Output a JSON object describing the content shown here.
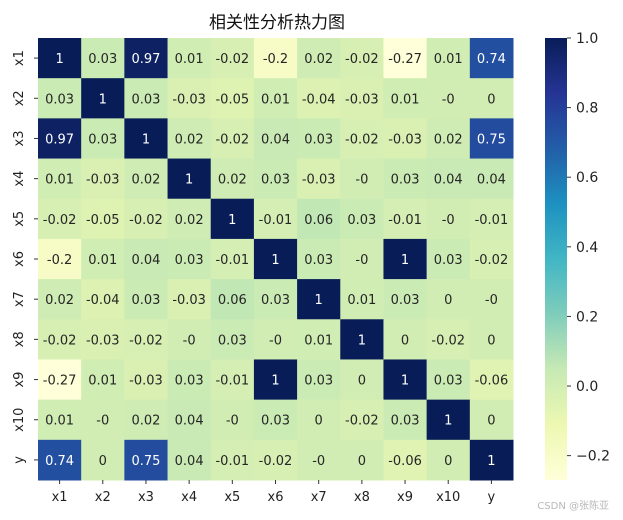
{
  "chart_data": {
    "type": "heatmap",
    "title": "相关性分析热力图",
    "row_labels": [
      "x1",
      "x2",
      "x3",
      "x4",
      "x5",
      "x6",
      "x7",
      "x8",
      "x9",
      "x10",
      "y"
    ],
    "col_labels": [
      "x1",
      "x2",
      "x3",
      "x4",
      "x5",
      "x6",
      "x7",
      "x8",
      "x9",
      "x10",
      "y"
    ],
    "values": [
      [
        1,
        0.03,
        0.97,
        0.01,
        -0.02,
        -0.2,
        0.02,
        -0.02,
        -0.27,
        0.01,
        0.74
      ],
      [
        0.03,
        1,
        0.03,
        -0.03,
        -0.05,
        0.01,
        -0.04,
        -0.03,
        0.01,
        0,
        0
      ],
      [
        0.97,
        0.03,
        1,
        0.02,
        -0.02,
        0.04,
        0.03,
        -0.02,
        -0.03,
        0.02,
        0.75
      ],
      [
        0.01,
        -0.03,
        0.02,
        1,
        0.02,
        0.03,
        -0.03,
        0,
        0.03,
        0.04,
        0.04
      ],
      [
        -0.02,
        -0.05,
        -0.02,
        0.02,
        1,
        -0.01,
        0.06,
        0.03,
        -0.01,
        0,
        -0.01
      ],
      [
        -0.2,
        0.01,
        0.04,
        0.03,
        -0.01,
        1,
        0.03,
        0,
        1,
        0.03,
        -0.02
      ],
      [
        0.02,
        -0.04,
        0.03,
        -0.03,
        0.06,
        0.03,
        1,
        0.01,
        0.03,
        0,
        0
      ],
      [
        -0.02,
        -0.03,
        -0.02,
        0,
        0.03,
        0,
        0.01,
        1,
        0,
        -0.02,
        0
      ],
      [
        -0.27,
        0.01,
        -0.03,
        0.03,
        -0.01,
        1,
        0.03,
        0,
        1,
        0.03,
        -0.06
      ],
      [
        0.01,
        0,
        0.02,
        0.04,
        0,
        0.03,
        0,
        -0.02,
        0.03,
        1,
        0
      ],
      [
        0.74,
        0,
        0.75,
        0.04,
        -0.01,
        -0.02,
        0,
        0,
        -0.06,
        0,
        1
      ]
    ],
    "cell_labels": [
      [
        "1",
        "0.03",
        "0.97",
        "0.01",
        "-0.02",
        "-0.2",
        "0.02",
        "-0.02",
        "-0.27",
        "0.01",
        "0.74"
      ],
      [
        "0.03",
        "1",
        "0.03",
        "-0.03",
        "-0.05",
        "0.01",
        "-0.04",
        "-0.03",
        "0.01",
        "-0",
        "0"
      ],
      [
        "0.97",
        "0.03",
        "1",
        "0.02",
        "-0.02",
        "0.04",
        "0.03",
        "-0.02",
        "-0.03",
        "0.02",
        "0.75"
      ],
      [
        "0.01",
        "-0.03",
        "0.02",
        "1",
        "0.02",
        "0.03",
        "-0.03",
        "-0",
        "0.03",
        "0.04",
        "0.04"
      ],
      [
        "-0.02",
        "-0.05",
        "-0.02",
        "0.02",
        "1",
        "-0.01",
        "0.06",
        "0.03",
        "-0.01",
        "-0",
        "-0.01"
      ],
      [
        "-0.2",
        "0.01",
        "0.04",
        "0.03",
        "-0.01",
        "1",
        "0.03",
        "-0",
        "1",
        "0.03",
        "-0.02"
      ],
      [
        "0.02",
        "-0.04",
        "0.03",
        "-0.03",
        "0.06",
        "0.03",
        "1",
        "0.01",
        "0.03",
        "0",
        "-0"
      ],
      [
        "-0.02",
        "-0.03",
        "-0.02",
        "-0",
        "0.03",
        "-0",
        "0.01",
        "1",
        "0",
        "-0.02",
        "0"
      ],
      [
        "-0.27",
        "0.01",
        "-0.03",
        "0.03",
        "-0.01",
        "1",
        "0.03",
        "0",
        "1",
        "0.03",
        "-0.06"
      ],
      [
        "0.01",
        "-0",
        "0.02",
        "0.04",
        "-0",
        "0.03",
        "0",
        "-0.02",
        "0.03",
        "1",
        "0"
      ],
      [
        "0.74",
        "0",
        "0.75",
        "0.04",
        "-0.01",
        "-0.02",
        "-0",
        "0",
        "-0.06",
        "0",
        "1"
      ]
    ],
    "colormap": "YlGnBu",
    "vmin": -0.27,
    "vmax": 1.0,
    "colorbar_ticks": [
      1.0,
      0.8,
      0.6,
      0.4,
      0.2,
      0.0,
      -0.2
    ],
    "colorbar_tick_labels": [
      "1.0",
      "0.8",
      "0.6",
      "0.4",
      "0.2",
      "0.0",
      "−0.2"
    ],
    "grid": false,
    "colorbar_position": "right"
  },
  "watermark": "CSDN @张陈亚"
}
